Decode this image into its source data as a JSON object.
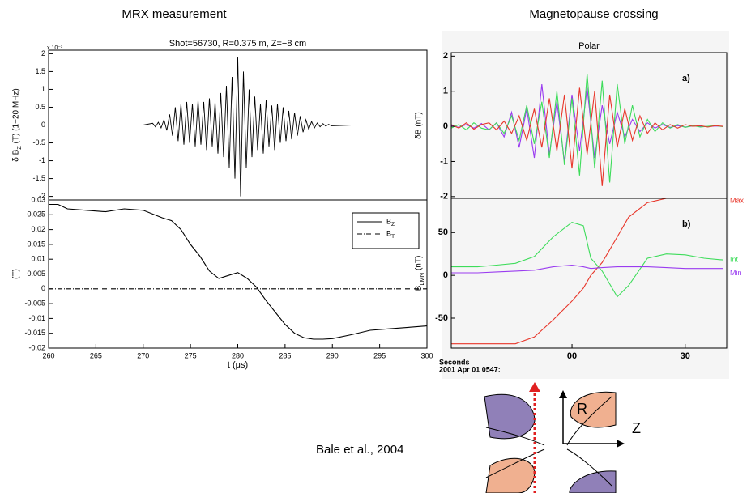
{
  "headings": {
    "left": "MRX measurement",
    "right": "Magnetopause crossing"
  },
  "citation": "Bale et al., 2004",
  "diagram": {
    "r_label": "R",
    "z_label": "Z"
  },
  "chart_data": [
    {
      "type": "line",
      "title": "Shot=56730, R=0.375 m, Z=−8 cm",
      "ylabel": "δ B_Z (T) (1−20 MHz)",
      "y_multiplier": "x 10⁻³",
      "xlim": [
        260,
        300
      ],
      "ylim": [
        -2.1,
        2.1
      ],
      "yticks": [
        2,
        1.5,
        1,
        0.5,
        0,
        -0.5,
        -1,
        -1.5,
        -2
      ],
      "series": [
        {
          "color": "#000000",
          "x": [
            260,
            265,
            270,
            271.0,
            271.3,
            271.6,
            271.9,
            272.2,
            272.5,
            272.8,
            273.1,
            273.4,
            273.7,
            274.0,
            274.3,
            274.6,
            274.9,
            275.2,
            275.5,
            275.8,
            276.1,
            276.4,
            276.7,
            277.0,
            277.3,
            277.6,
            277.9,
            278.2,
            278.5,
            278.8,
            279.1,
            279.4,
            279.7,
            280.0,
            280.3,
            280.6,
            280.9,
            281.2,
            281.5,
            281.8,
            282.1,
            282.4,
            282.7,
            283.0,
            283.3,
            283.6,
            283.9,
            284.2,
            284.5,
            284.8,
            285.1,
            285.4,
            285.7,
            286.0,
            286.3,
            286.6,
            286.9,
            287.2,
            287.5,
            287.8,
            288.1,
            288.4,
            288.7,
            289.0,
            289.3,
            289.6,
            289.9,
            292,
            296,
            300
          ],
          "values": [
            0,
            0,
            0,
            0.05,
            -0.05,
            0.08,
            -0.08,
            0.15,
            -0.15,
            0.3,
            -0.3,
            0.5,
            -0.45,
            0.6,
            -0.55,
            0.65,
            -0.5,
            0.6,
            -0.6,
            0.7,
            -0.55,
            0.65,
            -0.7,
            0.75,
            -0.6,
            0.65,
            -0.8,
            0.9,
            -0.9,
            1.1,
            -1.2,
            1.35,
            -1.5,
            1.9,
            -2.0,
            1.5,
            -1.2,
            1.0,
            -0.9,
            0.8,
            -0.7,
            0.6,
            -0.8,
            0.7,
            -0.6,
            0.55,
            -0.7,
            0.6,
            -0.5,
            0.5,
            -0.45,
            0.4,
            -0.4,
            0.35,
            -0.3,
            0.25,
            -0.2,
            0.15,
            -0.12,
            0.1,
            -0.08,
            0.06,
            -0.05,
            0.04,
            -0.03,
            0.02,
            -0.02,
            0,
            0,
            0
          ]
        }
      ]
    },
    {
      "type": "line",
      "ylabel": "(T)",
      "xlabel": "t (μs)",
      "legend": "upper right",
      "xlim": [
        260,
        300
      ],
      "ylim": [
        -0.02,
        0.03
      ],
      "xticks": [
        260,
        265,
        270,
        275,
        280,
        285,
        290,
        295,
        300
      ],
      "yticks": [
        0.03,
        0.025,
        0.02,
        0.015,
        0.01,
        0.005,
        0,
        -0.005,
        -0.01,
        -0.015,
        -0.02
      ],
      "series": [
        {
          "name": "B_Z",
          "color": "#000000",
          "line_style": "solid",
          "x": [
            260,
            261,
            262,
            264,
            266,
            268,
            270,
            272,
            273,
            274,
            275,
            276,
            277,
            278,
            279,
            280,
            281,
            282,
            283,
            284,
            285,
            286,
            287,
            288,
            289,
            290,
            292,
            294,
            296,
            298,
            300
          ],
          "values": [
            0.0285,
            0.0285,
            0.027,
            0.0265,
            0.026,
            0.027,
            0.0265,
            0.024,
            0.023,
            0.02,
            0.015,
            0.011,
            0.006,
            0.0035,
            0.0045,
            0.0055,
            0.0035,
            0.0005,
            -0.004,
            -0.008,
            -0.012,
            -0.015,
            -0.0165,
            -0.017,
            -0.017,
            -0.0168,
            -0.0155,
            -0.014,
            -0.0135,
            -0.013,
            -0.0125
          ]
        },
        {
          "name": "B_T",
          "color": "#000000",
          "line_style": "dashdot",
          "x": [
            260,
            300
          ],
          "values": [
            0,
            0
          ]
        }
      ]
    },
    {
      "type": "line",
      "title": "Polar",
      "ylabel": "δB (nT)",
      "panel_label": "a)",
      "xlim": [
        -32,
        41
      ],
      "ylim": [
        -2.05,
        2.1
      ],
      "yticks": [
        2,
        1,
        0,
        -1,
        -2
      ],
      "x": [
        -32,
        -30,
        -28,
        -26,
        -24,
        -22,
        -20,
        -18,
        -16,
        -14,
        -12,
        -10,
        -8,
        -6,
        -4,
        -2,
        0,
        2,
        4,
        6,
        8,
        10,
        12,
        14,
        16,
        18,
        20,
        22,
        24,
        26,
        28,
        30,
        32,
        34,
        36,
        38,
        40
      ],
      "series": [
        {
          "color": "#9a3cf0",
          "values": [
            0.02,
            -0.03,
            0.05,
            -0.05,
            0.08,
            -0.1,
            0.1,
            -0.3,
            0.4,
            -0.6,
            0.5,
            -0.9,
            1.2,
            -0.8,
            0.7,
            -1.0,
            0.9,
            -0.7,
            1.1,
            -0.9,
            0.6,
            -0.5,
            0.4,
            -0.3,
            0.2,
            -0.15,
            0.1,
            -0.05,
            0.05,
            -0.03,
            0.02,
            -0.02,
            0.01,
            0,
            -0.01,
            0.01,
            0
          ]
        },
        {
          "color": "#3ddc5a",
          "values": [
            -0.05,
            0.05,
            -0.1,
            0.1,
            -0.05,
            -0.1,
            0.1,
            -0.2,
            0.3,
            -0.4,
            0.6,
            -0.5,
            0.7,
            -0.9,
            1.0,
            -1.1,
            0.8,
            -1.4,
            1.5,
            -1.2,
            1.3,
            -1.6,
            1.2,
            -0.5,
            0.6,
            -0.3,
            0.2,
            -0.15,
            0.1,
            -0.05,
            0.05,
            -0.03,
            0.02,
            -0.02,
            0,
            0.02,
            -0.01
          ]
        },
        {
          "color": "#e8362a",
          "values": [
            0.05,
            -0.05,
            0.1,
            -0.08,
            0.05,
            0.1,
            -0.1,
            0.15,
            -0.2,
            0.3,
            -0.4,
            0.5,
            -0.6,
            0.8,
            -0.7,
            0.9,
            -1.2,
            1.1,
            -0.8,
            1.0,
            -1.7,
            0.9,
            -0.6,
            0.5,
            -0.4,
            0.3,
            -0.2,
            0.1,
            -0.1,
            0.05,
            -0.05,
            0.05,
            0,
            0.02,
            -0.02,
            0.02,
            0
          ]
        }
      ]
    },
    {
      "type": "line",
      "ylabel": "B_LMN (nT)",
      "panel_label": "b)",
      "end_labels": true,
      "xlim": [
        -32,
        41
      ],
      "ylim": [
        -85,
        90
      ],
      "yticks": [
        50,
        0,
        -50
      ],
      "xticks": [
        {
          "value": 0,
          "label": "00"
        },
        {
          "value": 30,
          "label": "30"
        }
      ],
      "x_caption": [
        "Seconds",
        "2001 Apr 01 0547:"
      ],
      "x": [
        -32,
        -25,
        -20,
        -15,
        -10,
        -5,
        0,
        3,
        5,
        8,
        12,
        15,
        20,
        25,
        30,
        35,
        40
      ],
      "series": [
        {
          "name": "Max",
          "color": "#e8362a",
          "values": [
            -80,
            -80,
            -80,
            -80,
            -72,
            -52,
            -30,
            -15,
            0,
            15,
            45,
            68,
            85,
            90,
            90,
            90,
            90
          ]
        },
        {
          "name": "Int",
          "color": "#3ddc5a",
          "values": [
            10,
            10,
            12,
            14,
            22,
            45,
            62,
            58,
            20,
            5,
            -25,
            -12,
            20,
            25,
            24,
            20,
            18
          ]
        },
        {
          "name": "Min",
          "color": "#9a3cf0",
          "values": [
            3,
            3,
            4,
            5,
            6,
            10,
            12,
            10,
            8,
            9,
            10,
            10,
            10,
            9,
            8,
            8,
            8
          ]
        }
      ]
    }
  ]
}
